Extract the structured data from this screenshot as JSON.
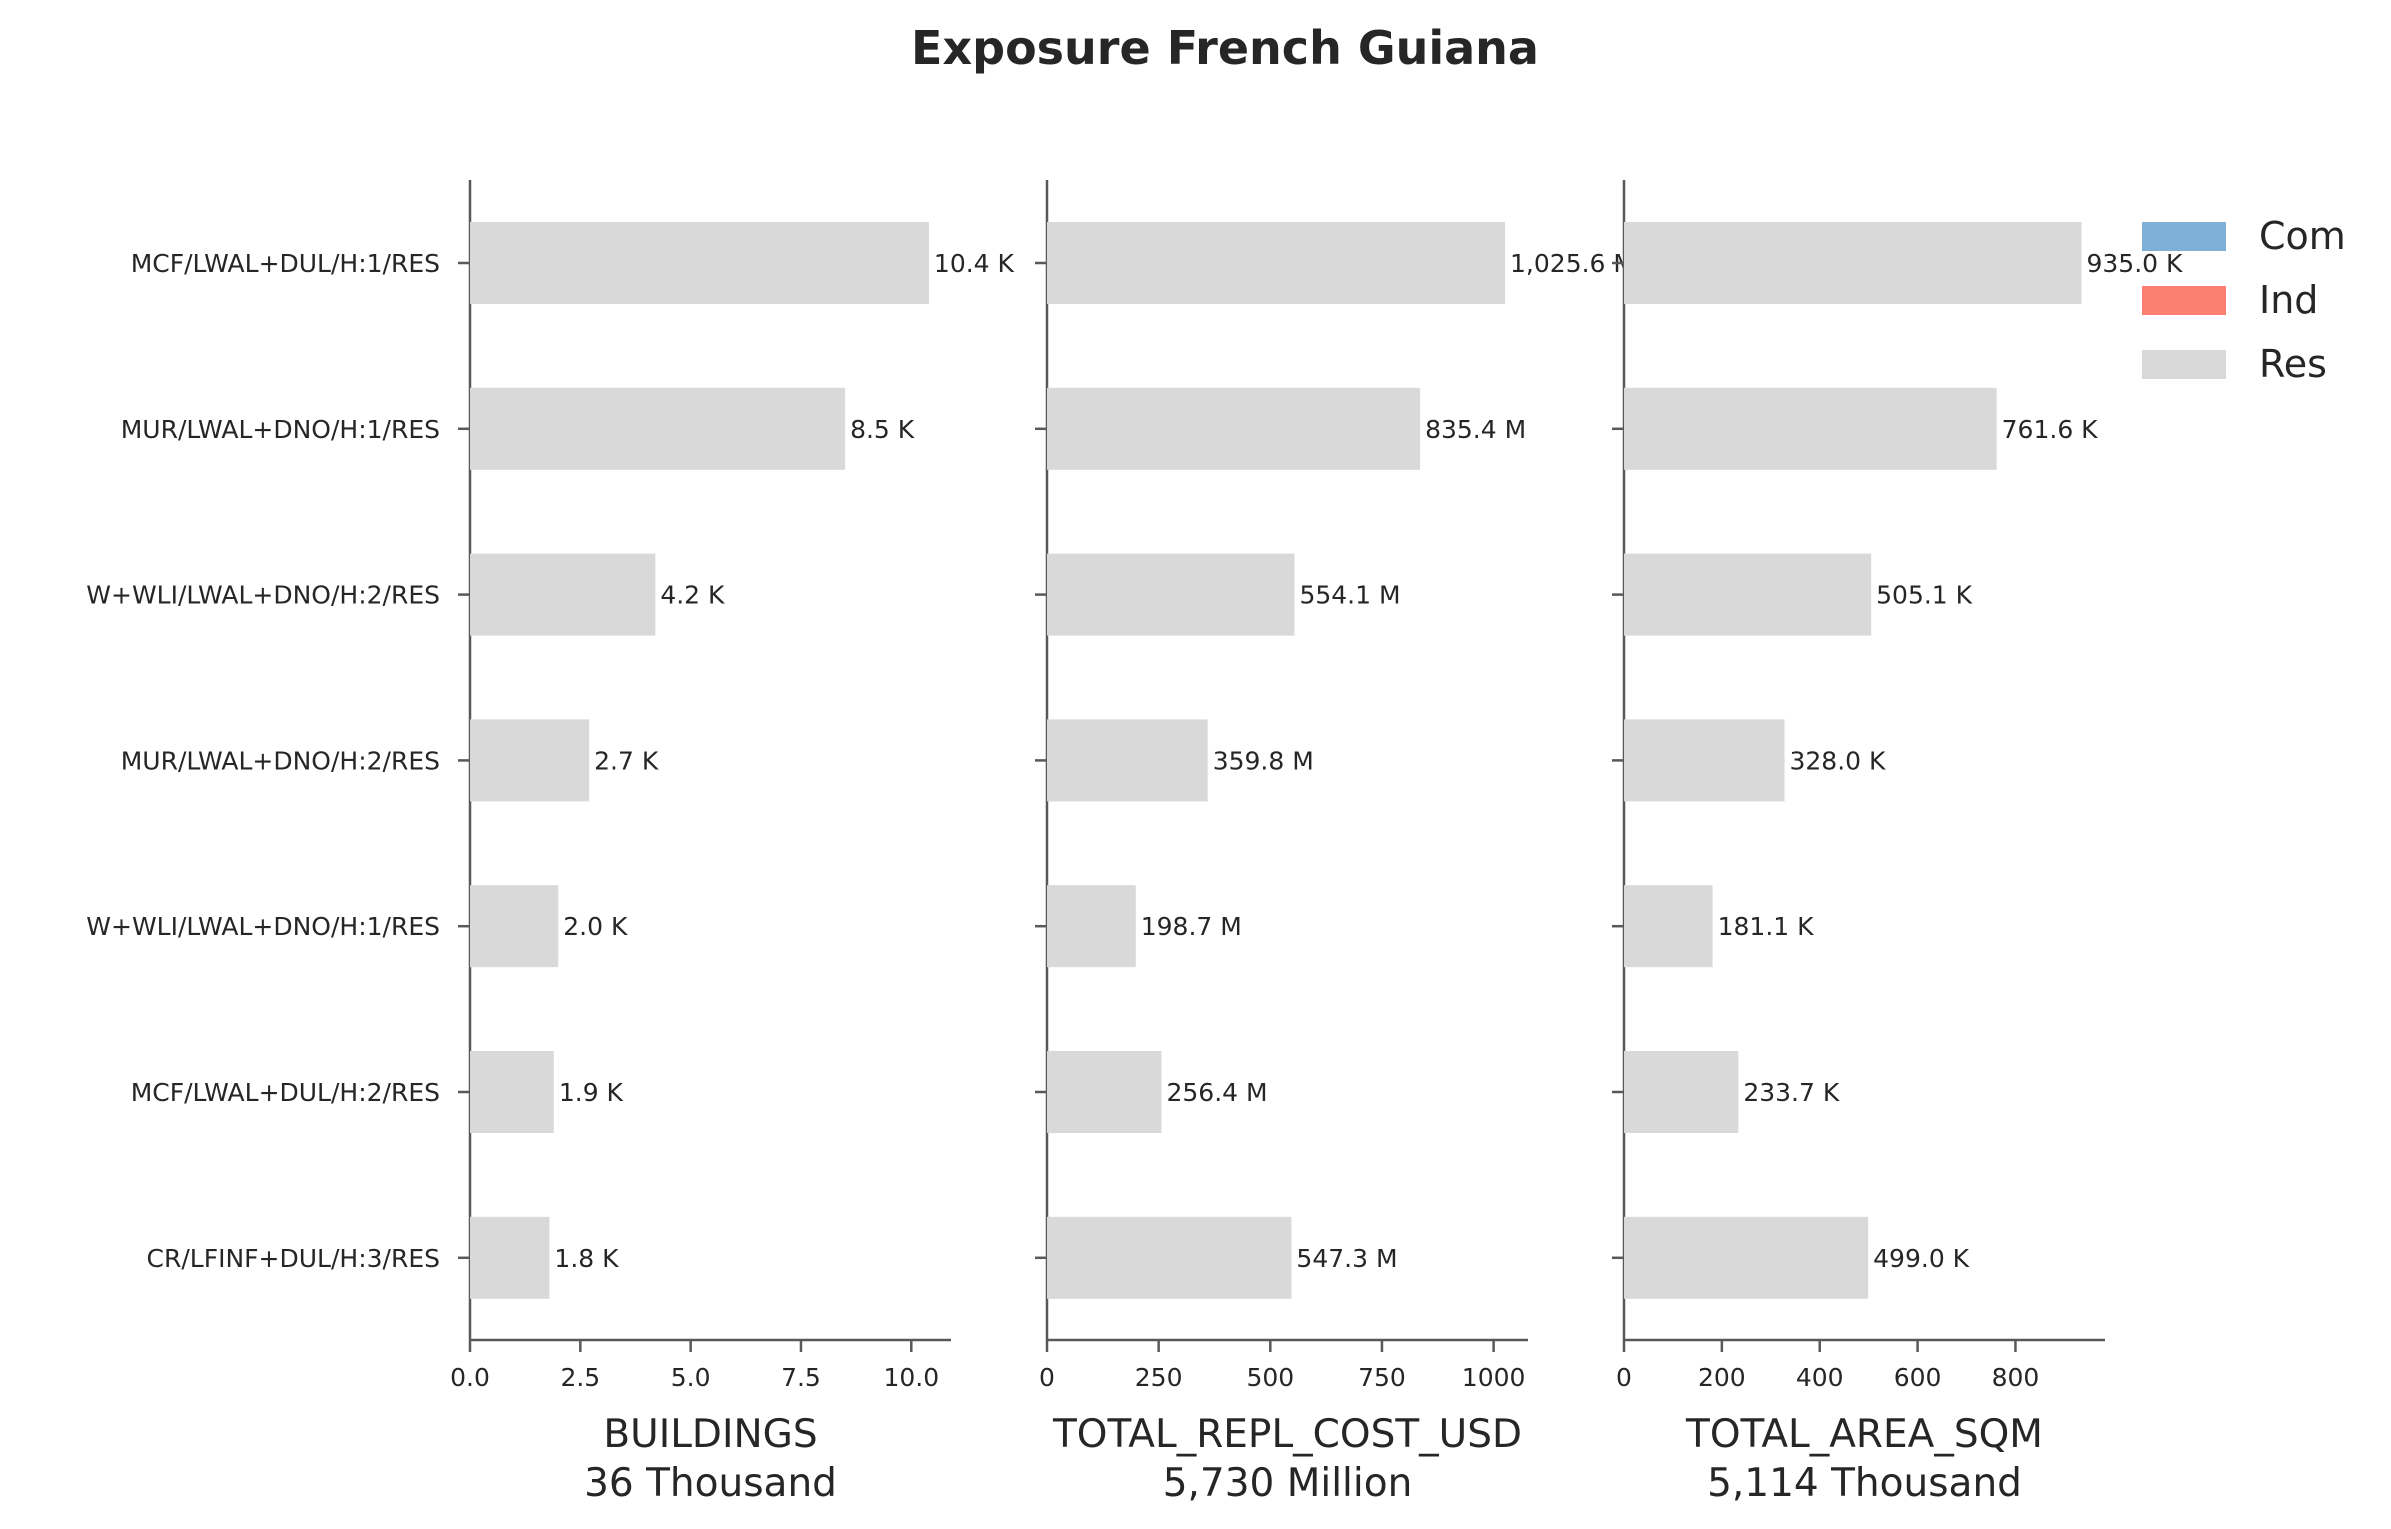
{
  "chart_data": {
    "type": "bar",
    "orientation": "horizontal",
    "title": "Exposure French Guiana",
    "categories": [
      "MCF/LWAL+DUL/H:1/RES",
      "MUR/LWAL+DNO/H:1/RES",
      "W+WLI/LWAL+DNO/H:2/RES",
      "MUR/LWAL+DNO/H:2/RES",
      "W+WLI/LWAL+DNO/H:1/RES",
      "MCF/LWAL+DUL/H:2/RES",
      "CR/LFINF+DUL/H:3/RES"
    ],
    "legend": {
      "placement": "top-right",
      "entries": [
        {
          "name": "Com",
          "color": "#7fb1d8"
        },
        {
          "name": "Ind",
          "color": "#fb8072"
        },
        {
          "name": "Res",
          "color": "#d9d9d9"
        }
      ]
    },
    "grid": false,
    "panels": [
      {
        "xlabel": "BUILDINGS",
        "total_label": "36 Thousand",
        "xlim": [
          0,
          10.9
        ],
        "xticks": [
          0,
          2.5,
          5,
          7.5,
          10
        ],
        "xtick_labels": [
          "0.0",
          "2.5",
          "5.0",
          "7.5",
          "10.0"
        ],
        "series": [
          {
            "name": "Res",
            "values": [
              10.4,
              8.5,
              4.2,
              2.7,
              2.0,
              1.9,
              1.8
            ]
          }
        ],
        "value_labels": [
          "10.4 K",
          "8.5 K",
          "4.2 K",
          "2.7 K",
          "2.0 K",
          "1.9 K",
          "1.8 K"
        ]
      },
      {
        "xlabel": "TOTAL_REPL_COST_USD",
        "total_label": "5,730 Million",
        "xlim": [
          0,
          1077
        ],
        "xticks": [
          0,
          250,
          500,
          750,
          1000
        ],
        "xtick_labels": [
          "0",
          "250",
          "500",
          "750",
          "1000"
        ],
        "series": [
          {
            "name": "Res",
            "values": [
              1025.6,
              835.4,
              554.1,
              359.8,
              198.7,
              256.4,
              547.3
            ]
          }
        ],
        "value_labels": [
          "1,025.6 M",
          "835.4 M",
          "554.1 M",
          "359.8 M",
          "198.7 M",
          "256.4 M",
          "547.3 M"
        ]
      },
      {
        "xlabel": "TOTAL_AREA_SQM",
        "total_label": "5,114 Thousand",
        "xlim": [
          0,
          983
        ],
        "xticks": [
          0,
          200,
          400,
          600,
          800
        ],
        "xtick_labels": [
          "0",
          "200",
          "400",
          "600",
          "800"
        ],
        "series": [
          {
            "name": "Res",
            "values": [
              935.0,
              761.6,
              505.1,
              328.0,
              181.1,
              233.7,
              499.0
            ]
          }
        ],
        "value_labels": [
          "935.0 K",
          "761.6 K",
          "505.1 K",
          "328.0 K",
          "181.1 K",
          "233.7 K",
          "499.0 K"
        ]
      }
    ]
  }
}
